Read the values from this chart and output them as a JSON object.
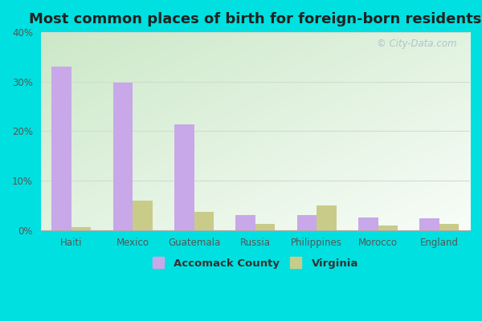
{
  "title": "Most common places of birth for foreign-born residents",
  "categories": [
    "Haiti",
    "Mexico",
    "Guatemala",
    "Russia",
    "Philippines",
    "Morocco",
    "England"
  ],
  "accomack_values": [
    33.0,
    29.8,
    21.3,
    3.0,
    3.0,
    2.5,
    2.3
  ],
  "virginia_values": [
    0.6,
    6.0,
    3.7,
    1.3,
    5.0,
    0.9,
    1.2
  ],
  "accomack_color": "#c8a8e8",
  "virginia_color": "#c8cc88",
  "background_outer": "#00e0e0",
  "title_fontsize": 13,
  "tick_fontsize": 8.5,
  "legend_fontsize": 9.5,
  "bar_width": 0.32,
  "ylim": [
    0,
    40
  ],
  "yticks": [
    0,
    10,
    20,
    30,
    40
  ],
  "ytick_labels": [
    "0%",
    "10%",
    "20%",
    "30%",
    "40%"
  ],
  "legend_label_accomack": "Accomack County",
  "legend_label_virginia": "Virginia",
  "watermark_text": "© City-Data.com",
  "grid_color": "#d0ddd0",
  "bg_colors": [
    "#cce8c8",
    "#f5fdf8"
  ]
}
